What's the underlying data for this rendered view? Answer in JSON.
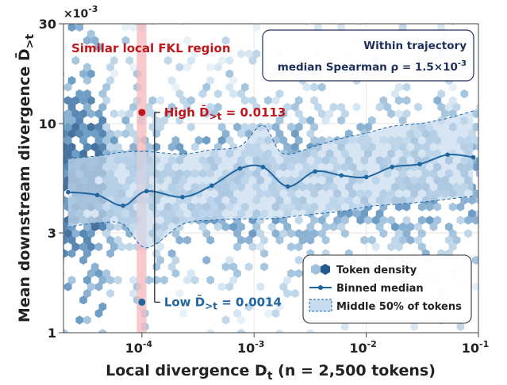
{
  "chart_data": {
    "type": "scatter",
    "title": "",
    "xlabel": "Local divergence",
    "xlabel_symbol": "D",
    "xlabel_sub": "t",
    "xlabel_suffix": "(n = 2,500 tokens)",
    "ylabel": "Mean downstream divergence",
    "ylabel_symbol": "D̄",
    "ylabel_sub": ">t",
    "y_multiplier": "×10",
    "y_multiplier_exp": "-3",
    "xscale": "log",
    "yscale": "log",
    "xlim": [
      2e-05,
      0.1
    ],
    "ylim": [
      1,
      30
    ],
    "x_ticks": [
      {
        "value": 0.0001,
        "base": "10",
        "exp": "-4"
      },
      {
        "value": 0.001,
        "base": "10",
        "exp": "-3"
      },
      {
        "value": 0.01,
        "base": "10",
        "exp": "-2"
      },
      {
        "value": 0.1,
        "base": "10",
        "exp": "-1"
      }
    ],
    "y_ticks": [
      {
        "value": 1,
        "label": "1"
      },
      {
        "value": 3,
        "label": "3"
      },
      {
        "value": 10,
        "label": "10"
      },
      {
        "value": 30,
        "label": "30"
      }
    ],
    "grid": true,
    "series": [
      {
        "name": "Binned median",
        "kind": "line",
        "color": "#1f66a0",
        "x": [
          2.2e-05,
          4e-05,
          6.8e-05,
          0.00011,
          0.00023,
          0.00042,
          0.00075,
          0.0012,
          0.002,
          0.0035,
          0.006,
          0.01,
          0.017,
          0.03,
          0.053,
          0.09
        ],
        "y": [
          4.7,
          4.55,
          4.05,
          4.75,
          4.45,
          5.05,
          6.1,
          6.2,
          5.0,
          5.9,
          5.65,
          5.55,
          6.2,
          6.4,
          7.1,
          6.9
        ]
      },
      {
        "name": "Middle 50% of tokens",
        "kind": "band",
        "color": "#c7dcee",
        "x": [
          2.2e-05,
          4e-05,
          6.8e-05,
          0.00011,
          0.00023,
          0.00042,
          0.00075,
          0.0012,
          0.0018,
          0.0035,
          0.006,
          0.01,
          0.017,
          0.03,
          0.053,
          0.09
        ],
        "lower": [
          3.2,
          3.35,
          3.3,
          2.55,
          3.3,
          3.45,
          3.5,
          3.5,
          3.55,
          3.7,
          3.8,
          4.0,
          4.1,
          4.2,
          4.35,
          4.5
        ],
        "upper": [
          6.8,
          7.0,
          7.3,
          7.35,
          7.15,
          7.5,
          7.8,
          9.8,
          7.2,
          7.8,
          8.5,
          9.0,
          9.7,
          10.0,
          10.6,
          11.5
        ]
      },
      {
        "name": "Token density",
        "kind": "hexbin",
        "color": "#2f6fa5"
      }
    ],
    "highlight_region": {
      "label": "Similar local FKL region",
      "x_range": [
        9e-05,
        0.00011
      ],
      "color": "#f4b9bc"
    },
    "annotations": [
      {
        "id": "high",
        "x": 0.0001,
        "y": 11.3,
        "prefix": "High",
        "symbol": "D̄",
        "sub": ">t",
        "value": "= 0.0113",
        "color": "#c0171d"
      },
      {
        "id": "low",
        "x": 0.0001,
        "y": 1.4,
        "prefix": "Low",
        "symbol": "D̄",
        "sub": ">t",
        "value": "= 0.0014",
        "color": "#1f66a0"
      }
    ],
    "info_box": {
      "line1": "Within trajectory",
      "line2_prefix": "median Spearman ρ = 1.5×10",
      "line2_exp": "-3"
    },
    "legend": {
      "position": "bottom-right",
      "items": [
        "Token density",
        "Binned median",
        "Middle 50% of tokens"
      ]
    }
  }
}
